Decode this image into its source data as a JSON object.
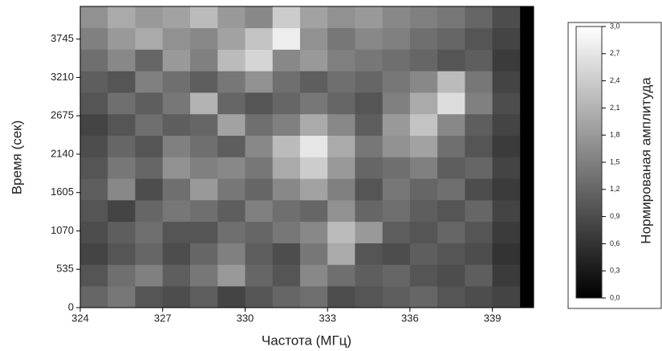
{
  "chart_data": {
    "type": "heatmap",
    "x_label": "Частота (МГц)",
    "y_label": "Время (сек)",
    "colorbar_label": "Нормированая амплитуда",
    "x": [
      324.5,
      325.5,
      326.5,
      327.5,
      328.5,
      329.5,
      330.5,
      331.5,
      332.5,
      333.5,
      334.5,
      335.5,
      336.5,
      337.5,
      338.5,
      339.5
    ],
    "y": [
      150,
      450,
      750,
      1050,
      1350,
      1650,
      1950,
      2250,
      2550,
      2850,
      3150,
      3450,
      3750,
      4050
    ],
    "z": [
      [
        1.2,
        1.4,
        1.0,
        0.9,
        1.1,
        0.8,
        1.0,
        1.2,
        1.3,
        0.9,
        1.0,
        1.1,
        1.2,
        1.0,
        0.9,
        0.8
      ],
      [
        1.0,
        1.3,
        1.5,
        1.1,
        1.4,
        1.8,
        1.2,
        1.0,
        1.6,
        1.3,
        1.1,
        1.2,
        1.0,
        0.9,
        1.1,
        0.7
      ],
      [
        0.8,
        1.0,
        1.2,
        0.9,
        1.2,
        1.5,
        1.1,
        0.9,
        1.4,
        2.0,
        1.0,
        0.9,
        1.1,
        1.0,
        0.9,
        0.6
      ],
      [
        0.9,
        1.1,
        1.3,
        1.0,
        1.0,
        1.3,
        1.2,
        1.4,
        1.6,
        2.2,
        1.8,
        1.1,
        1.0,
        1.2,
        1.0,
        0.7
      ],
      [
        1.0,
        0.8,
        1.2,
        1.4,
        1.3,
        1.1,
        1.5,
        1.3,
        1.2,
        1.7,
        1.2,
        1.3,
        1.1,
        1.0,
        1.2,
        0.8
      ],
      [
        1.1,
        1.6,
        0.9,
        1.3,
        1.8,
        1.4,
        1.2,
        1.6,
        1.9,
        1.5,
        1.0,
        1.4,
        1.2,
        1.3,
        0.9,
        0.7
      ],
      [
        1.0,
        1.4,
        1.2,
        1.7,
        1.5,
        1.6,
        1.4,
        2.0,
        2.4,
        1.8,
        1.2,
        1.3,
        1.5,
        1.1,
        1.2,
        0.8
      ],
      [
        0.9,
        1.2,
        1.0,
        1.5,
        1.3,
        1.1,
        1.6,
        2.2,
        2.7,
        2.0,
        1.4,
        1.7,
        1.9,
        1.3,
        1.0,
        0.7
      ],
      [
        0.8,
        1.0,
        1.3,
        1.1,
        1.2,
        1.9,
        1.3,
        1.5,
        2.0,
        1.6,
        1.1,
        1.8,
        2.3,
        1.6,
        1.1,
        0.8
      ],
      [
        1.0,
        1.3,
        1.1,
        1.4,
        2.1,
        1.2,
        1.0,
        1.2,
        1.4,
        1.2,
        1.0,
        1.5,
        2.0,
        2.6,
        1.5,
        0.9
      ],
      [
        1.1,
        1.0,
        1.5,
        1.3,
        1.1,
        1.4,
        1.7,
        1.3,
        1.1,
        1.3,
        1.2,
        1.4,
        1.6,
        2.2,
        1.4,
        0.8
      ],
      [
        1.3,
        1.6,
        1.2,
        1.8,
        1.5,
        2.2,
        2.5,
        1.6,
        1.8,
        1.5,
        1.4,
        1.3,
        1.2,
        1.0,
        1.1,
        0.7
      ],
      [
        1.5,
        1.8,
        2.0,
        1.7,
        1.6,
        1.9,
        2.3,
        2.8,
        1.7,
        1.4,
        1.6,
        1.5,
        1.3,
        1.2,
        1.0,
        0.8
      ],
      [
        1.7,
        2.0,
        1.8,
        1.9,
        2.2,
        1.8,
        1.6,
        2.4,
        1.9,
        1.7,
        1.8,
        1.6,
        1.5,
        1.4,
        1.2,
        0.9
      ]
    ],
    "xlim": [
      324,
      340.5
    ],
    "xticks": [
      324,
      327,
      330,
      333,
      336,
      339
    ],
    "ylim": [
      0,
      4200
    ],
    "yticks": [
      0,
      535,
      1070,
      1605,
      2140,
      2675,
      3210,
      3745
    ],
    "zlim": [
      0,
      3
    ],
    "zticks": [
      {
        "value": 0,
        "label": "0,0"
      },
      {
        "value": 0.3,
        "label": "0,3"
      },
      {
        "value": 0.6,
        "label": "0,6"
      },
      {
        "value": 0.9,
        "label": "0,9"
      },
      {
        "value": 1.2,
        "label": "1,2"
      },
      {
        "value": 1.5,
        "label": "1,5"
      },
      {
        "value": 1.8,
        "label": "1,8"
      },
      {
        "value": 2.1,
        "label": "2,1"
      },
      {
        "value": 2.4,
        "label": "2,4"
      },
      {
        "value": 2.7,
        "label": "2,7"
      },
      {
        "value": 3.0,
        "label": "3,0"
      }
    ]
  }
}
